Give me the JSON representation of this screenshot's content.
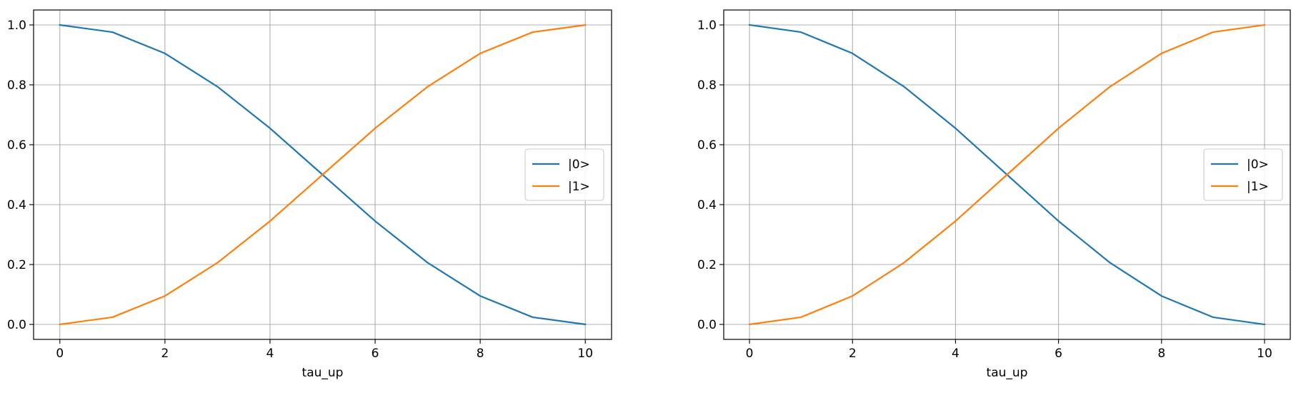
{
  "figure": {
    "background": "#ffffff",
    "grid_color": "#b0b0b0",
    "axes_color": "#000000"
  },
  "chart_data": [
    {
      "type": "line",
      "xlabel": "tau_up",
      "ylabel": "",
      "title": "",
      "xlim": [
        -0.5,
        10.5
      ],
      "ylim": [
        -0.05,
        1.05
      ],
      "xticks": [
        0,
        2,
        4,
        6,
        8,
        10
      ],
      "xtick_labels": [
        "0",
        "2",
        "4",
        "6",
        "8",
        "10"
      ],
      "yticks": [
        0.0,
        0.2,
        0.4,
        0.6,
        0.8,
        1.0
      ],
      "ytick_labels": [
        "0.0",
        "0.2",
        "0.4",
        "0.6",
        "0.8",
        "1.0"
      ],
      "grid": true,
      "legend_position": "center-right",
      "x": [
        0,
        1,
        2,
        3,
        4,
        5,
        6,
        7,
        8,
        9,
        10
      ],
      "series": [
        {
          "name": "|0>",
          "color": "#1f77b4",
          "values": [
            1.0,
            0.976,
            0.905,
            0.794,
            0.655,
            0.5,
            0.345,
            0.206,
            0.095,
            0.024,
            0.0
          ]
        },
        {
          "name": "|1>",
          "color": "#ff7f0e",
          "values": [
            0.0,
            0.024,
            0.095,
            0.206,
            0.345,
            0.5,
            0.655,
            0.794,
            0.905,
            0.976,
            1.0
          ]
        }
      ]
    },
    {
      "type": "line",
      "xlabel": "tau_up",
      "ylabel": "",
      "title": "",
      "xlim": [
        -0.5,
        10.5
      ],
      "ylim": [
        -0.05,
        1.05
      ],
      "xticks": [
        0,
        2,
        4,
        6,
        8,
        10
      ],
      "xtick_labels": [
        "0",
        "2",
        "4",
        "6",
        "8",
        "10"
      ],
      "yticks": [
        0.0,
        0.2,
        0.4,
        0.6,
        0.8,
        1.0
      ],
      "ytick_labels": [
        "0.0",
        "0.2",
        "0.4",
        "0.6",
        "0.8",
        "1.0"
      ],
      "grid": true,
      "legend_position": "center-right",
      "x": [
        0,
        1,
        2,
        3,
        4,
        5,
        6,
        7,
        8,
        9,
        10
      ],
      "series": [
        {
          "name": "|0>",
          "color": "#1f77b4",
          "values": [
            1.0,
            0.976,
            0.905,
            0.794,
            0.655,
            0.5,
            0.345,
            0.206,
            0.095,
            0.024,
            0.0
          ]
        },
        {
          "name": "|1>",
          "color": "#ff7f0e",
          "values": [
            0.0,
            0.024,
            0.095,
            0.206,
            0.345,
            0.5,
            0.655,
            0.794,
            0.905,
            0.976,
            1.0
          ]
        }
      ]
    }
  ]
}
